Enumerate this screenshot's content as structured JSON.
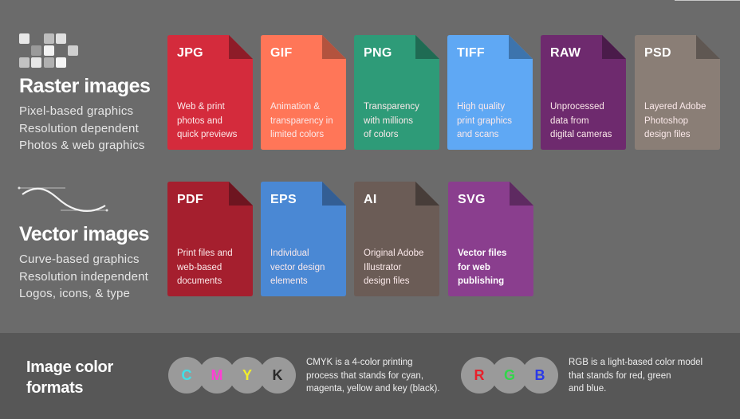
{
  "raster": {
    "title": "Raster images",
    "lines": [
      "Pixel-based graphics",
      "Resolution dependent",
      "Photos & web graphics"
    ]
  },
  "vector": {
    "title": "Vector images",
    "lines": [
      "Curve-based graphics",
      "Resolution independent",
      "Logos, icons, & type"
    ]
  },
  "raster_cards": [
    {
      "ext": "JPG",
      "lines": [
        "Web & print",
        "photos and",
        "quick previews"
      ],
      "color": "#d42b3c",
      "fold": "#8e1c28"
    },
    {
      "ext": "GIF",
      "lines": [
        "Animation &",
        "transparency in",
        "limited colors"
      ],
      "color": "#ff7658",
      "fold": "#b3533e"
    },
    {
      "ext": "PNG",
      "lines": [
        "Transparency",
        "with millions",
        "of colors"
      ],
      "color": "#2e9b78",
      "fold": "#1f6b53"
    },
    {
      "ext": "TIFF",
      "lines": [
        "High quality",
        "print graphics",
        "and scans"
      ],
      "color": "#5fa8f4",
      "fold": "#3d74ad"
    },
    {
      "ext": "RAW",
      "lines": [
        "Unprocessed",
        "data from",
        "digital cameras"
      ],
      "color": "#6e2a6e",
      "fold": "#4a1b4a"
    },
    {
      "ext": "PSD",
      "lines": [
        "Layered Adobe",
        "Photoshop",
        "design files"
      ],
      "color": "#8a7e76",
      "fold": "#5f5752"
    }
  ],
  "vector_cards": [
    {
      "ext": "PDF",
      "lines": [
        "Print files and",
        "web-based",
        "documents"
      ],
      "color": "#a51f2e",
      "fold": "#6e1520"
    },
    {
      "ext": "EPS",
      "lines": [
        "Individual",
        "vector design",
        "elements"
      ],
      "color": "#4a88d4",
      "fold": "#335e94"
    },
    {
      "ext": "AI",
      "lines": [
        "Original Adobe",
        "Illustrator",
        "design files"
      ],
      "color": "#6b5c56",
      "fold": "#473d39"
    },
    {
      "ext": "SVG",
      "lines": [
        "Vector files",
        "for web",
        "publishing"
      ],
      "color": "#8a3e8e",
      "fold": "#5e2a61",
      "bold": true
    }
  ],
  "footer": {
    "title_lines": [
      "Image color",
      "formats"
    ],
    "cmyk": {
      "letters": [
        {
          "char": "C",
          "color": "#3ee0e8"
        },
        {
          "char": "M",
          "color": "#ff3fd3"
        },
        {
          "char": "Y",
          "color": "#f2ee2a"
        },
        {
          "char": "K",
          "color": "#2a2a2a"
        }
      ],
      "lines": [
        "CMYK is a 4-color printing",
        "process that stands for cyan,",
        "magenta, yellow and key (black)."
      ]
    },
    "rgb": {
      "letters": [
        {
          "char": "R",
          "color": "#e8202a"
        },
        {
          "char": "G",
          "color": "#32d64a"
        },
        {
          "char": "B",
          "color": "#2a3ae8"
        }
      ],
      "lines": [
        "RGB is a light-based color model",
        "that stands for red, green",
        "and blue."
      ]
    }
  },
  "icons": {
    "raster": "pixel-grid-icon",
    "vector": "bezier-curve-icon"
  }
}
